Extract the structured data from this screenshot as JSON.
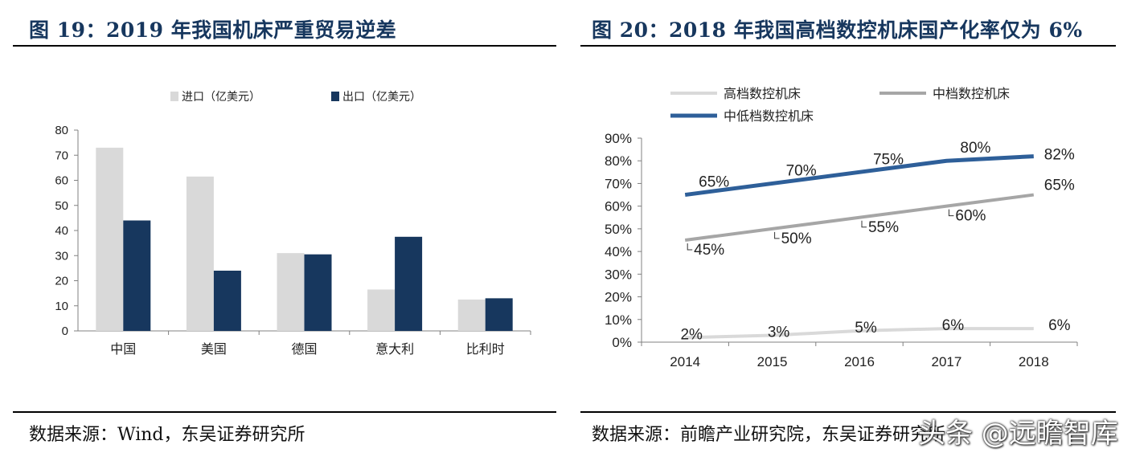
{
  "left": {
    "title": "图 19：2019 年我国机床严重贸易逆差",
    "source": "数据来源：Wind，东吴证券研究所"
  },
  "right": {
    "title": "图 20：2018 年我国高档数控机床国产化率仅为 6%",
    "source": "数据来源：前瞻产业研究院，东吴证券研究所"
  },
  "watermark": "头条 @远瞻智库",
  "colors": {
    "import": "#d9d9d9",
    "export": "#17375e",
    "high": "#d9d9d9",
    "mid": "#a6a6a6",
    "lowmid": "#2e5f99",
    "title": "#17375e"
  },
  "chart_data": [
    {
      "type": "bar",
      "title": "2019 年我国机床严重贸易逆差",
      "categories": [
        "中国",
        "美国",
        "德国",
        "意大利",
        "比利时"
      ],
      "series": [
        {
          "name": "进口（亿美元）",
          "values": [
            73,
            61.5,
            31,
            16.5,
            12.5
          ]
        },
        {
          "name": "出口（亿美元）",
          "values": [
            44,
            24,
            30.5,
            37.5,
            13
          ]
        }
      ],
      "ylim": [
        0,
        80
      ],
      "yticks": [
        0,
        10,
        20,
        30,
        40,
        50,
        60,
        70,
        80
      ],
      "legend": "top-center"
    },
    {
      "type": "line",
      "title": "2018 年我国高档数控机床国产化率仅为 6%",
      "x": [
        "2014",
        "2015",
        "2016",
        "2017",
        "2018"
      ],
      "series": [
        {
          "name": "高档数控机床",
          "values": [
            2,
            3,
            5,
            6,
            6
          ],
          "labels": [
            "2%",
            "3%",
            "5%",
            "6%",
            "6%"
          ]
        },
        {
          "name": "中档数控机床",
          "values": [
            45,
            50,
            55,
            60,
            65
          ],
          "labels": [
            "45%",
            "50%",
            "55%",
            "60%",
            "65%"
          ]
        },
        {
          "name": "中低档数控机床",
          "values": [
            65,
            70,
            75,
            80,
            82
          ],
          "labels": [
            "65%",
            "70%",
            "75%",
            "80%",
            "82%"
          ]
        }
      ],
      "ylim": [
        0,
        90
      ],
      "yticks": [
        "0%",
        "10%",
        "20%",
        "30%",
        "40%",
        "50%",
        "60%",
        "70%",
        "80%",
        "90%"
      ],
      "legend": "top-left"
    }
  ]
}
